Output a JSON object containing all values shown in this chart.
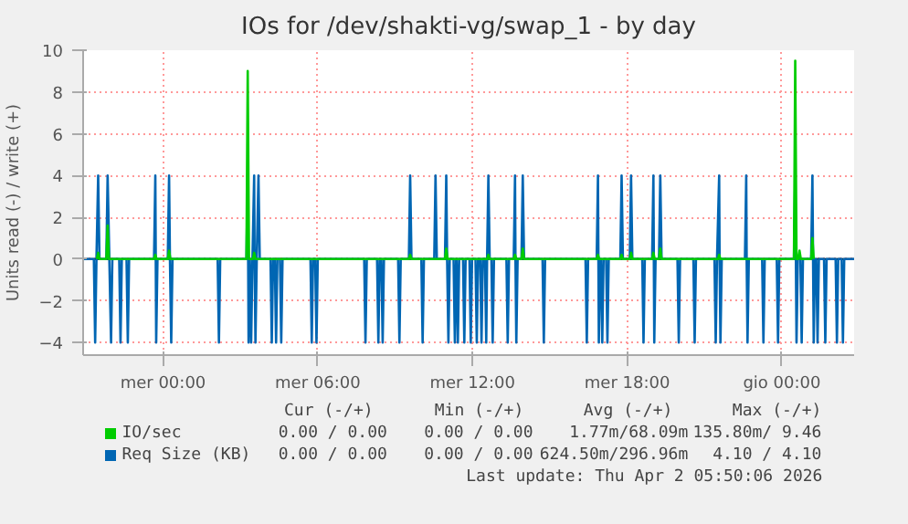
{
  "chart_data": {
    "type": "line",
    "title": "IOs for /dev/shakti-vg/swap_1 - by day",
    "ylabel": "Units read (-) / write (+)",
    "xlim": [
      "2026-03-31T20:54",
      "2026-04-02T02:48"
    ],
    "xticks": [
      {
        "value": "2026-04-01T00:00",
        "label": "mer 00:00"
      },
      {
        "value": "2026-04-01T06:00",
        "label": "mer 06:00"
      },
      {
        "value": "2026-04-01T12:00",
        "label": "mer 12:00"
      },
      {
        "value": "2026-04-01T18:00",
        "label": "mer 18:00"
      },
      {
        "value": "2026-04-02T00:00",
        "label": "gio 00:00"
      }
    ],
    "ylim": [
      -4.6,
      10
    ],
    "yticks": [
      -4,
      -2,
      0,
      2,
      4,
      6,
      8,
      10
    ],
    "grid": true,
    "legend": "bottom",
    "line_style": "solid",
    "series": [
      {
        "name": "IO/sec",
        "color": "#00cc00",
        "x": [
          "2026-03-31T21:26",
          "2026-03-31T21:29",
          "2026-03-31T21:32",
          "2026-03-31T21:48",
          "2026-03-31T21:51",
          "2026-03-31T21:54",
          "2026-03-31T23:39",
          "2026-03-31T23:42",
          "2026-03-31T23:45",
          "2026-04-01T00:11",
          "2026-04-01T00:14",
          "2026-04-01T00:17",
          "2026-04-01T03:14",
          "2026-04-01T03:17",
          "2026-04-01T03:20",
          "2026-04-01T03:29",
          "2026-04-01T03:32",
          "2026-04-01T03:35",
          "2026-04-01T09:32",
          "2026-04-01T09:35",
          "2026-04-01T09:38",
          "2026-04-01T10:56",
          "2026-04-01T10:59",
          "2026-04-01T11:02",
          "2026-04-01T12:34",
          "2026-04-01T12:37",
          "2026-04-01T12:40",
          "2026-04-01T13:36",
          "2026-04-01T13:39",
          "2026-04-01T13:42",
          "2026-04-01T13:54",
          "2026-04-01T13:57",
          "2026-04-01T14:00",
          "2026-04-01T16:49",
          "2026-04-01T16:52",
          "2026-04-01T16:55",
          "2026-04-01T17:44",
          "2026-04-01T17:47",
          "2026-04-01T17:50",
          "2026-04-01T18:06",
          "2026-04-01T18:09",
          "2026-04-01T18:12",
          "2026-04-01T18:58",
          "2026-04-01T19:01",
          "2026-04-01T19:04",
          "2026-04-01T19:14",
          "2026-04-01T19:17",
          "2026-04-01T19:20",
          "2026-04-01T21:31",
          "2026-04-01T21:34",
          "2026-04-01T21:37",
          "2026-04-02T00:28",
          "2026-04-02T00:31",
          "2026-04-02T00:34",
          "2026-04-02T00:38",
          "2026-04-02T00:41",
          "2026-04-02T00:44",
          "2026-04-02T01:08",
          "2026-04-02T01:11",
          "2026-04-02T01:14"
        ],
        "values": [
          0,
          0.3,
          0,
          0,
          1.6,
          0,
          0,
          0.2,
          0,
          0,
          0.4,
          0,
          0,
          9.0,
          0,
          0,
          0.3,
          0,
          0,
          0.2,
          0,
          0,
          0.5,
          0,
          0,
          0.2,
          0,
          0,
          0.2,
          0,
          0,
          0.5,
          0,
          0,
          0.2,
          0,
          0,
          0.2,
          0,
          0,
          0.3,
          0,
          0,
          0.3,
          0,
          0,
          0.5,
          0,
          0,
          0.2,
          0,
          0,
          9.5,
          0,
          0,
          0.4,
          0,
          0,
          1.0,
          0
        ]
      },
      {
        "name": "Req Size (KB)",
        "color": "#0066b3",
        "x": [
          "2026-03-31T20:54",
          "2026-03-31T21:19",
          "2026-03-31T21:22",
          "2026-03-31T21:25",
          "2026-03-31T21:29",
          "2026-03-31T21:32",
          "2026-03-31T21:48",
          "2026-03-31T21:51",
          "2026-03-31T21:55",
          "2026-03-31T21:59",
          "2026-03-31T22:02",
          "2026-03-31T22:18",
          "2026-03-31T22:21",
          "2026-03-31T22:24",
          "2026-03-31T22:35",
          "2026-03-31T22:38",
          "2026-03-31T22:41",
          "2026-03-31T23:39",
          "2026-03-31T23:42",
          "2026-03-31T23:44",
          "2026-03-31T23:47",
          "2026-04-01T00:11",
          "2026-04-01T00:14",
          "2026-04-01T00:16",
          "2026-04-01T00:19",
          "2026-04-01T00:22",
          "2026-04-01T02:07",
          "2026-04-01T02:10",
          "2026-04-01T02:13",
          "2026-04-01T03:14",
          "2026-04-01T03:17",
          "2026-04-01T03:19",
          "2026-04-01T03:22",
          "2026-04-01T03:25",
          "2026-04-01T03:28",
          "2026-04-01T03:32",
          "2026-04-01T03:33",
          "2026-04-01T03:35",
          "2026-04-01T03:38",
          "2026-04-01T03:42",
          "2026-04-01T03:45",
          "2026-04-01T04:10",
          "2026-04-01T04:13",
          "2026-04-01T04:16",
          "2026-04-01T04:20",
          "2026-04-01T04:23",
          "2026-04-01T04:26",
          "2026-04-01T04:32",
          "2026-04-01T04:35",
          "2026-04-01T04:38",
          "2026-04-01T05:43",
          "2026-04-01T05:46",
          "2026-04-01T05:49",
          "2026-04-01T05:54",
          "2026-04-01T05:57",
          "2026-04-01T06:00",
          "2026-04-01T07:48",
          "2026-04-01T07:51",
          "2026-04-01T07:54",
          "2026-04-01T08:18",
          "2026-04-01T08:21",
          "2026-04-01T08:24",
          "2026-04-01T08:28",
          "2026-04-01T08:31",
          "2026-04-01T08:34",
          "2026-04-01T09:07",
          "2026-04-01T09:10",
          "2026-04-01T09:13",
          "2026-04-01T09:32",
          "2026-04-01T09:35",
          "2026-04-01T09:38",
          "2026-04-01T10:01",
          "2026-04-01T10:04",
          "2026-04-01T10:07",
          "2026-04-01T10:31",
          "2026-04-01T10:34",
          "2026-04-01T10:37",
          "2026-04-01T10:56",
          "2026-04-01T10:59",
          "2026-04-01T11:01",
          "2026-04-01T11:04",
          "2026-04-01T11:07",
          "2026-04-01T11:16",
          "2026-04-01T11:19",
          "2026-04-01T11:22",
          "2026-04-01T11:23",
          "2026-04-01T11:26",
          "2026-04-01T11:29",
          "2026-04-01T11:38",
          "2026-04-01T11:41",
          "2026-04-01T11:44",
          "2026-04-01T11:53",
          "2026-04-01T11:56",
          "2026-04-01T11:59",
          "2026-04-01T12:07",
          "2026-04-01T12:10",
          "2026-04-01T12:13",
          "2026-04-01T12:18",
          "2026-04-01T12:21",
          "2026-04-01T12:24",
          "2026-04-01T12:29",
          "2026-04-01T12:32",
          "2026-04-01T12:34",
          "2026-04-01T12:37",
          "2026-04-01T12:40",
          "2026-04-01T12:44",
          "2026-04-01T12:47",
          "2026-04-01T12:50",
          "2026-04-01T13:19",
          "2026-04-01T13:22",
          "2026-04-01T13:25",
          "2026-04-01T13:36",
          "2026-04-01T13:39",
          "2026-04-01T13:40",
          "2026-04-01T13:42",
          "2026-04-01T13:45",
          "2026-04-01T13:54",
          "2026-04-01T13:57",
          "2026-04-01T14:00",
          "2026-04-01T14:43",
          "2026-04-01T14:46",
          "2026-04-01T14:49",
          "2026-04-01T16:23",
          "2026-04-01T16:26",
          "2026-04-01T16:29",
          "2026-04-01T16:49",
          "2026-04-01T16:52",
          "2026-04-01T16:54",
          "2026-04-01T16:57",
          "2026-04-01T16:59",
          "2026-04-01T17:02",
          "2026-04-01T17:05",
          "2026-04-01T17:11",
          "2026-04-01T17:14",
          "2026-04-01T17:17",
          "2026-04-01T17:44",
          "2026-04-01T17:47",
          "2026-04-01T17:50",
          "2026-04-01T18:06",
          "2026-04-01T18:09",
          "2026-04-01T18:12",
          "2026-04-01T18:35",
          "2026-04-01T18:38",
          "2026-04-01T18:41",
          "2026-04-01T18:58",
          "2026-04-01T19:01",
          "2026-04-01T19:03",
          "2026-04-01T19:06",
          "2026-04-01T19:14",
          "2026-04-01T19:17",
          "2026-04-01T19:20",
          "2026-04-01T19:57",
          "2026-04-01T20:00",
          "2026-04-01T20:03",
          "2026-04-01T20:34",
          "2026-04-01T20:37",
          "2026-04-01T20:40",
          "2026-04-01T21:23",
          "2026-04-01T21:26",
          "2026-04-01T21:29",
          "2026-04-01T21:34",
          "2026-04-01T21:35",
          "2026-04-01T21:37",
          "2026-04-01T21:40",
          "2026-04-01T22:34",
          "2026-04-01T22:37",
          "2026-04-01T22:38",
          "2026-04-01T22:40",
          "2026-04-01T22:43",
          "2026-04-01T23:14",
          "2026-04-01T23:17",
          "2026-04-01T23:20",
          "2026-04-01T23:48",
          "2026-04-01T23:51",
          "2026-04-01T23:54",
          "2026-04-02T00:28",
          "2026-04-02T00:31",
          "2026-04-02T00:34",
          "2026-04-02T00:37",
          "2026-04-02T00:43",
          "2026-04-02T00:46",
          "2026-04-02T00:49",
          "2026-04-02T01:08",
          "2026-04-02T01:11",
          "2026-04-02T01:14",
          "2026-04-02T01:17",
          "2026-04-02T01:20",
          "2026-04-02T01:23",
          "2026-04-02T01:26",
          "2026-04-02T01:38",
          "2026-04-02T01:41",
          "2026-04-02T01:44",
          "2026-04-02T02:05",
          "2026-04-02T02:08",
          "2026-04-02T02:11",
          "2026-04-02T02:19",
          "2026-04-02T02:22",
          "2026-04-02T02:25",
          "2026-04-02T02:48"
        ],
        "values": [
          0,
          0,
          -4,
          0,
          4,
          0,
          0,
          4,
          0,
          -4,
          0,
          0,
          -4,
          0,
          0,
          -4,
          0,
          0,
          4,
          -4,
          0,
          0,
          4,
          0,
          -4,
          0,
          0,
          -4,
          0,
          0,
          4,
          -4,
          0,
          -4,
          0,
          4,
          0,
          -4,
          0,
          4,
          0,
          0,
          -4,
          0,
          0,
          -4,
          0,
          0,
          -4,
          0,
          0,
          -4,
          0,
          0,
          -4,
          0,
          0,
          -4,
          0,
          0,
          -4,
          0,
          0,
          -4,
          0,
          0,
          -4,
          0,
          0,
          4,
          0,
          0,
          -4,
          0,
          0,
          4,
          0,
          0,
          4,
          0,
          -4,
          0,
          0,
          -4,
          0,
          0,
          -4,
          0,
          0,
          -4,
          0,
          0,
          -4,
          0,
          0,
          -4,
          0,
          0,
          -4,
          0,
          0,
          -4,
          0,
          4,
          0,
          0,
          -4,
          0,
          0,
          -4,
          0,
          0,
          4,
          0,
          -4,
          0,
          0,
          4,
          0,
          0,
          -4,
          0,
          0,
          -4,
          0,
          0,
          4,
          -4,
          0,
          0,
          -4,
          0,
          0,
          -4,
          0,
          0,
          4,
          0,
          0,
          4,
          0,
          0,
          -4,
          0,
          0,
          4,
          -4,
          0,
          0,
          4,
          0,
          0,
          -4,
          0,
          0,
          -4,
          0,
          0,
          -4,
          0,
          4,
          0,
          -4,
          0,
          0,
          4,
          0,
          -4,
          0,
          0,
          -4,
          0,
          0,
          -4,
          0,
          0,
          4,
          -4,
          0,
          0,
          -4,
          0,
          0,
          4,
          -4,
          0,
          0,
          -4,
          0,
          0,
          -4,
          0,
          0,
          -4,
          0,
          0,
          -4,
          0,
          0
        ]
      }
    ],
    "annotations": [
      "Cur (-/+)",
      "Min (-/+)",
      "Avg (-/+)",
      "Max (-/+)",
      "0.00 / 0.00",
      "0.00 / 0.00",
      "1.77m/68.09m",
      "135.80m/ 9.46",
      "0.00 / 0.00",
      "0.00 / 0.00",
      "624.50m/296.96m",
      "4.10 / 4.10",
      "Last update: Thu Apr  2 05:50:06 2026"
    ]
  }
}
